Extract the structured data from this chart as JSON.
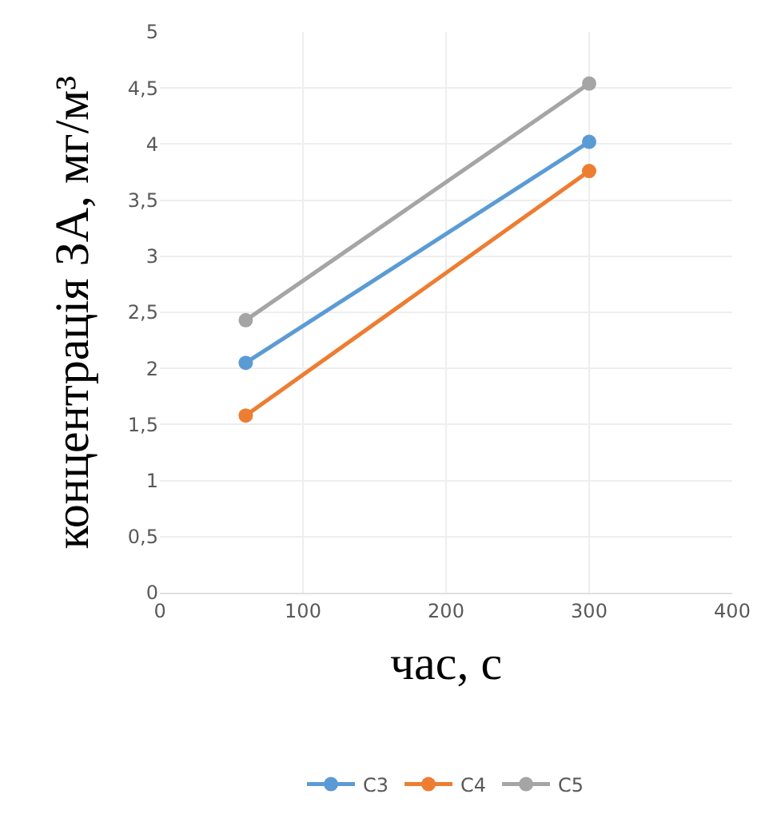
{
  "chart_data": {
    "type": "line",
    "xlabel": "час, с",
    "ylabel": "концентрація ЗА, мг/м³",
    "x": [
      60,
      300
    ],
    "series": [
      {
        "name": "C3",
        "color": "#5b9bd5",
        "values": [
          2.05,
          4.02
        ]
      },
      {
        "name": "C4",
        "color": "#ed7d31",
        "values": [
          1.58,
          3.76
        ]
      },
      {
        "name": "C5",
        "color": "#a5a5a5",
        "values": [
          2.43,
          4.54
        ]
      }
    ],
    "xlim": [
      0,
      400
    ],
    "xticks": [
      0,
      100,
      200,
      300,
      400
    ],
    "ylim": [
      0,
      5
    ],
    "yticks": [
      0,
      {
        "value": 0.5,
        "label": "0,5"
      },
      1,
      {
        "value": 1.5,
        "label": "1,5"
      },
      2,
      {
        "value": 2.5,
        "label": "2,5"
      },
      3,
      {
        "value": 3.5,
        "label": "3,5"
      },
      4,
      {
        "value": 4.5,
        "label": "4,5"
      },
      5
    ],
    "grid": true,
    "legend": "bottom",
    "marker": "circle",
    "line_style": "solid"
  }
}
